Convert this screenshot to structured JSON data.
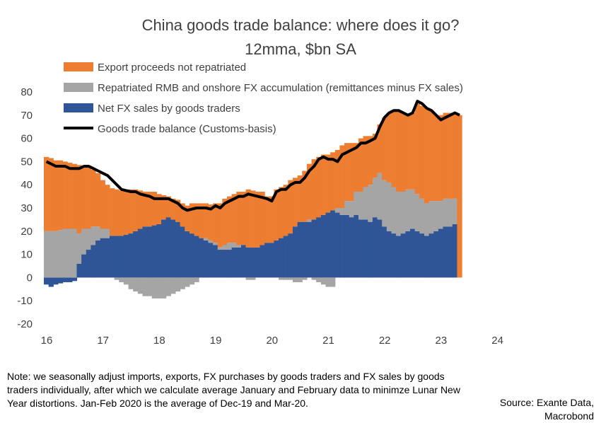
{
  "chart_data": {
    "type": "area",
    "title": "China goods trade balance: where does it go?",
    "subtitle": "12mma, $bn SA",
    "ylim": [
      -20,
      80
    ],
    "y_ticks": [
      80,
      70,
      60,
      50,
      40,
      30,
      20,
      10,
      0,
      -10,
      -20
    ],
    "x_tick_labels": [
      "16",
      "17",
      "18",
      "19",
      "20",
      "21",
      "22",
      "23",
      "24"
    ],
    "x_range": [
      2016.0,
      2024.4
    ],
    "x_start": 2016.0,
    "x_step": 0.08333,
    "series": [
      {
        "name": "Export proceeds not repatriated",
        "color": "#ED7D31",
        "kind": "bar"
      },
      {
        "name": "Repatriated RMB and onshore FX accumulation (remittances minus FX sales)",
        "color": "#A5A5A5",
        "kind": "bar"
      },
      {
        "name": "Net FX sales by goods traders",
        "color": "#2F5597",
        "kind": "bar"
      },
      {
        "name": "Goods trade balance (Customs-basis)",
        "color": "#000000",
        "kind": "line"
      }
    ],
    "trade_balance": [
      50,
      49,
      48,
      48,
      48,
      47,
      47,
      47,
      48,
      48,
      47,
      46,
      45,
      44,
      42,
      40,
      38,
      37.5,
      37,
      37,
      36,
      35.5,
      35,
      34,
      34,
      34,
      34,
      33,
      32,
      30,
      29,
      29.5,
      30,
      30,
      30,
      29.5,
      31,
      30,
      32,
      33,
      34,
      35,
      35,
      36,
      35.5,
      35,
      34.5,
      34,
      33,
      37,
      38,
      38,
      40,
      41,
      41,
      43,
      46,
      48,
      51,
      52,
      51,
      51,
      50,
      53,
      54,
      55,
      56,
      58,
      58,
      59,
      60,
      65,
      69,
      71,
      72,
      72,
      71,
      70,
      71,
      76,
      75,
      73,
      72,
      70,
      68,
      69,
      70,
      71,
      70
    ],
    "net_fx_sales": [
      -3,
      -4,
      -3,
      -2.5,
      -2,
      -2,
      -1.5,
      6,
      10,
      12,
      14,
      16,
      17,
      17,
      18,
      18,
      18,
      18.5,
      19,
      20,
      21,
      22,
      22,
      22.5,
      23,
      25,
      26,
      25,
      24,
      22,
      20,
      19,
      18,
      17,
      16,
      15,
      14,
      12,
      12,
      12,
      13,
      13,
      14,
      13,
      13,
      13,
      14,
      15,
      15,
      16,
      17,
      18,
      19,
      22,
      24,
      24,
      24,
      25,
      26,
      27,
      28,
      29,
      28,
      27,
      27,
      26,
      27,
      25,
      25,
      24,
      26,
      25,
      22,
      20,
      19,
      18,
      19,
      20,
      21,
      20,
      19,
      18,
      19,
      20,
      21,
      22,
      22,
      23
    ],
    "repatriated": [
      20,
      20,
      20,
      20.5,
      21,
      21,
      21,
      13,
      11,
      9,
      8,
      6,
      4,
      4,
      0,
      -1,
      -2,
      -3,
      -5,
      -6,
      -7,
      -8,
      -8,
      -9,
      -9,
      -9,
      -8,
      -7,
      -6,
      -5,
      -4,
      -3,
      -2,
      0,
      1,
      1,
      1,
      1,
      2,
      3,
      2,
      1,
      0,
      -1,
      -1,
      0,
      0,
      0,
      0,
      0,
      -1,
      -1,
      -1,
      -2,
      -2,
      -1,
      1,
      -1,
      -2,
      -3,
      -4,
      -4,
      2,
      3,
      6,
      7,
      10,
      12,
      14,
      16,
      17,
      20,
      20,
      21,
      20,
      19,
      18,
      18,
      17,
      16,
      15,
      14,
      14,
      13,
      12,
      12,
      12,
      11
    ],
    "total_height": [
      52,
      51.5,
      50.5,
      50.5,
      50,
      49.5,
      49,
      48.5,
      48,
      47.5,
      46.5,
      45,
      42,
      40,
      38.5,
      38,
      37.5,
      38,
      38,
      38,
      37.5,
      37,
      37,
      37,
      36,
      35.5,
      35,
      34,
      33.5,
      32,
      31,
      32,
      32,
      32,
      32,
      31.5,
      32,
      32,
      34,
      35,
      36,
      37,
      37,
      38,
      37.5,
      37,
      37,
      35,
      35,
      38,
      39,
      40,
      42,
      43,
      44,
      46,
      49,
      51,
      52,
      53,
      53,
      54,
      55,
      57,
      58,
      58,
      58,
      60,
      61,
      61,
      62,
      66,
      69,
      71,
      72,
      72,
      71,
      70,
      71,
      75,
      74,
      73,
      72,
      70,
      70,
      71,
      71,
      71,
      70
    ]
  },
  "note": "Note: we seasonally adjust imports, exports, FX purchases by goods traders and FX sales by goods traders individually, after which we calculate average January and February data to minimze Lunar New Year distortions. Jan-Feb 2020 is the average of Dec-19 and Mar-20.",
  "source": "Source: Exante Data, Macrobond"
}
